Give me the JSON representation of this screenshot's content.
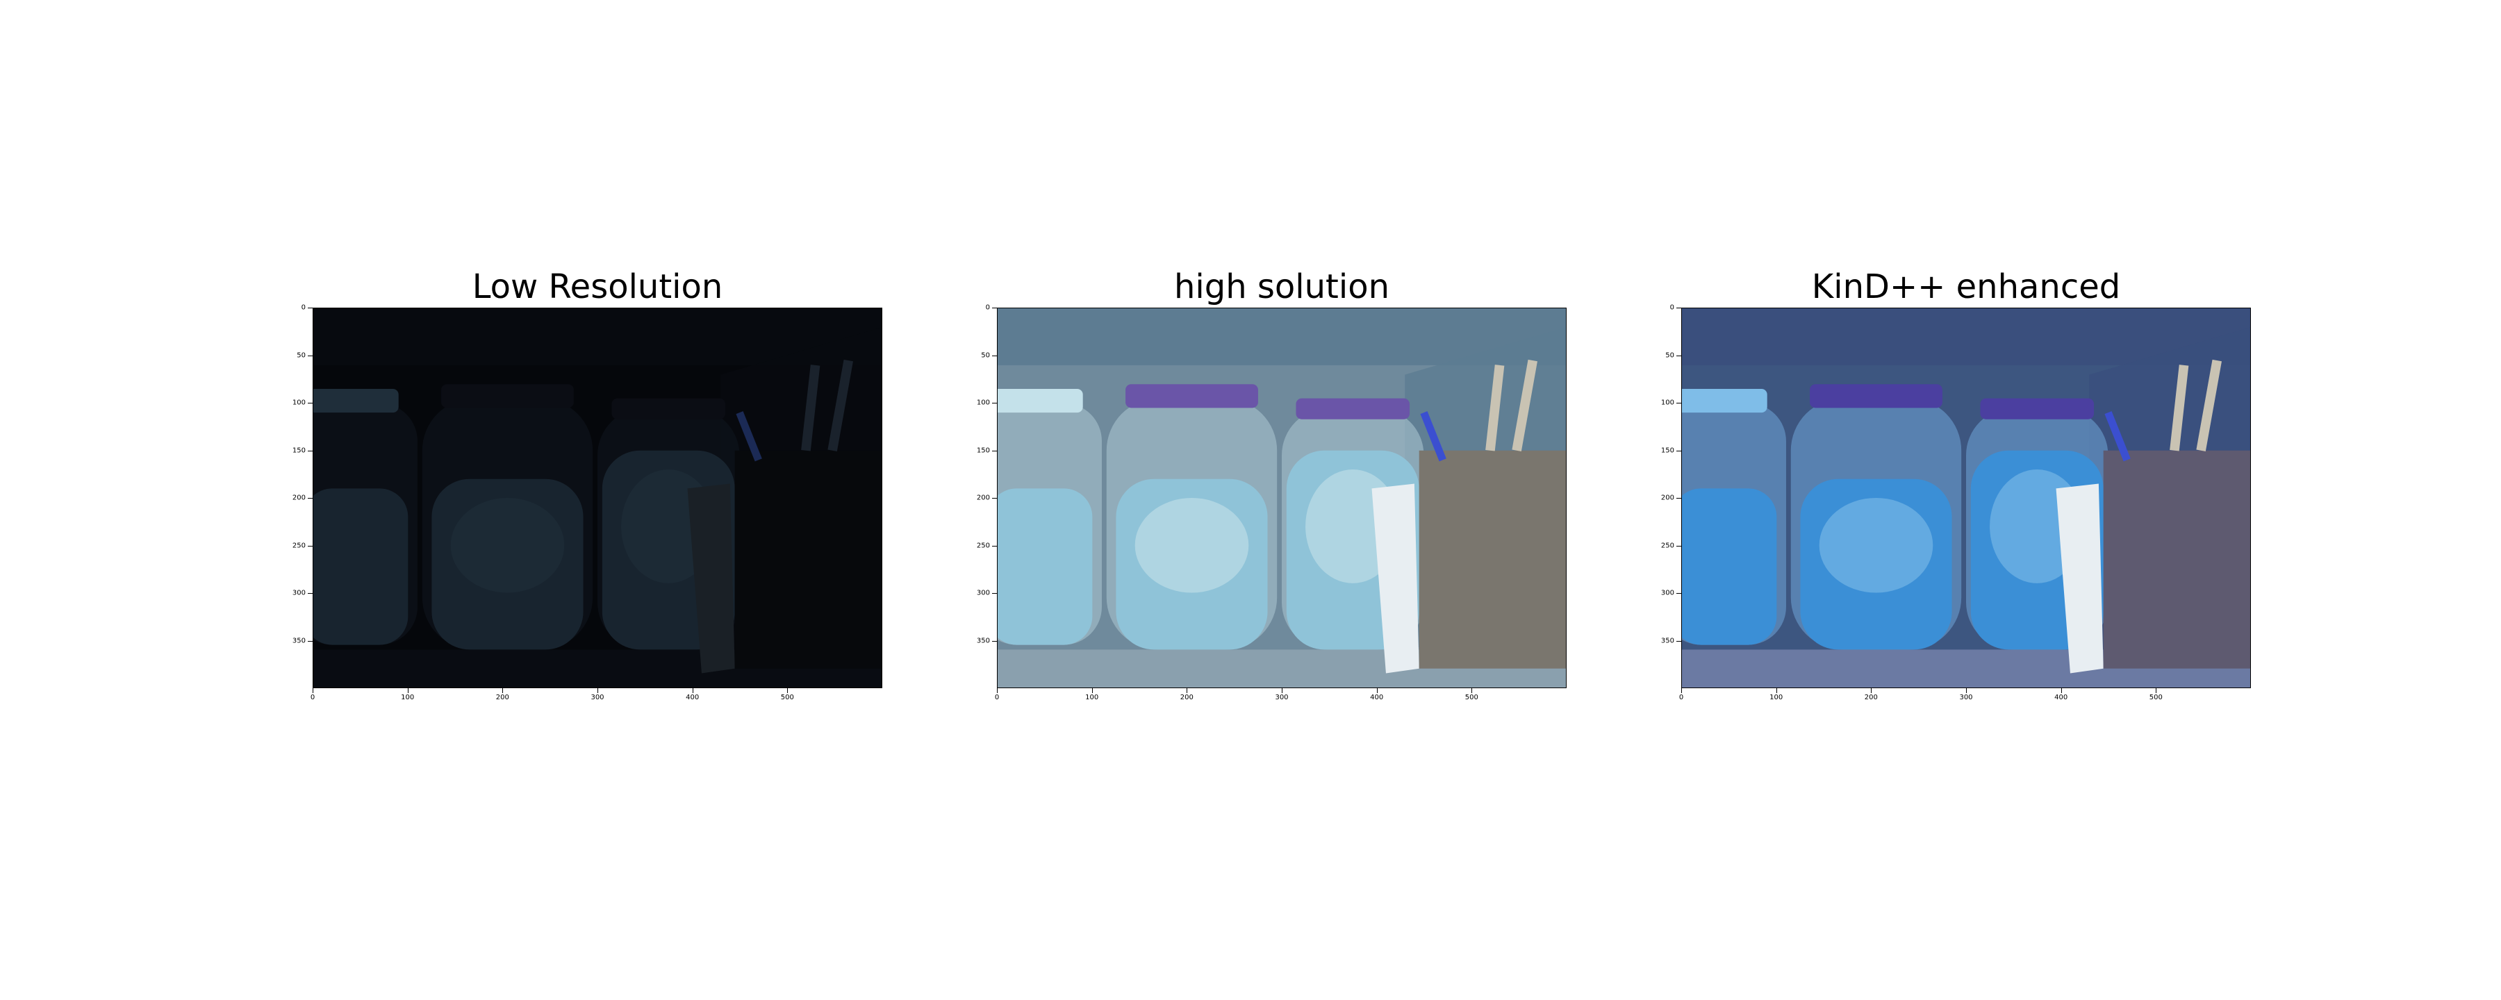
{
  "figure": {
    "panels": [
      {
        "title": "Low Resolution",
        "variant": "dark"
      },
      {
        "title": "high solution",
        "variant": "normal"
      },
      {
        "title": "KinD++ enhanced",
        "variant": "enhanced"
      }
    ],
    "x_ticks": [
      "0",
      "100",
      "200",
      "300",
      "400",
      "500"
    ],
    "y_ticks": [
      "0",
      "50",
      "100",
      "150",
      "200",
      "250",
      "300",
      "350"
    ]
  }
}
